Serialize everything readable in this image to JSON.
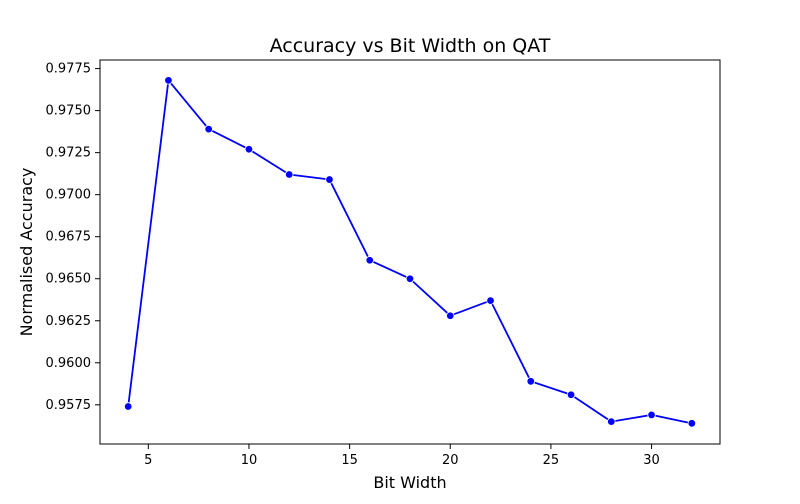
{
  "chart_data": {
    "type": "line",
    "title": "Accuracy vs Bit Width on QAT",
    "xlabel": "Bit Width",
    "ylabel": "Normalised Accuracy",
    "xlim": [
      2.6,
      33.4
    ],
    "ylim": [
      0.95517,
      0.97801
    ],
    "xticks": [
      5,
      10,
      15,
      20,
      25,
      30
    ],
    "xtick_labels": [
      "5",
      "10",
      "15",
      "20",
      "25",
      "30"
    ],
    "yticks": [
      0.9575,
      0.96,
      0.9625,
      0.965,
      0.9675,
      0.97,
      0.9725,
      0.975,
      0.9775
    ],
    "ytick_labels": [
      "0.9575",
      "0.9600",
      "0.9625",
      "0.9650",
      "0.9675",
      "0.9700",
      "0.9725",
      "0.9750",
      "0.9775"
    ],
    "grid": false,
    "legend": "none",
    "series": [
      {
        "color": "#0000ff",
        "marker": "circle",
        "x": [
          4,
          6,
          8,
          10,
          12,
          14,
          16,
          18,
          20,
          22,
          24,
          26,
          28,
          30,
          32
        ],
        "values": [
          0.9574,
          0.9768,
          0.9739,
          0.9727,
          0.9712,
          0.9709,
          0.9661,
          0.965,
          0.9628,
          0.9637,
          0.9589,
          0.9581,
          0.9565,
          0.9569,
          0.9564
        ]
      }
    ]
  }
}
